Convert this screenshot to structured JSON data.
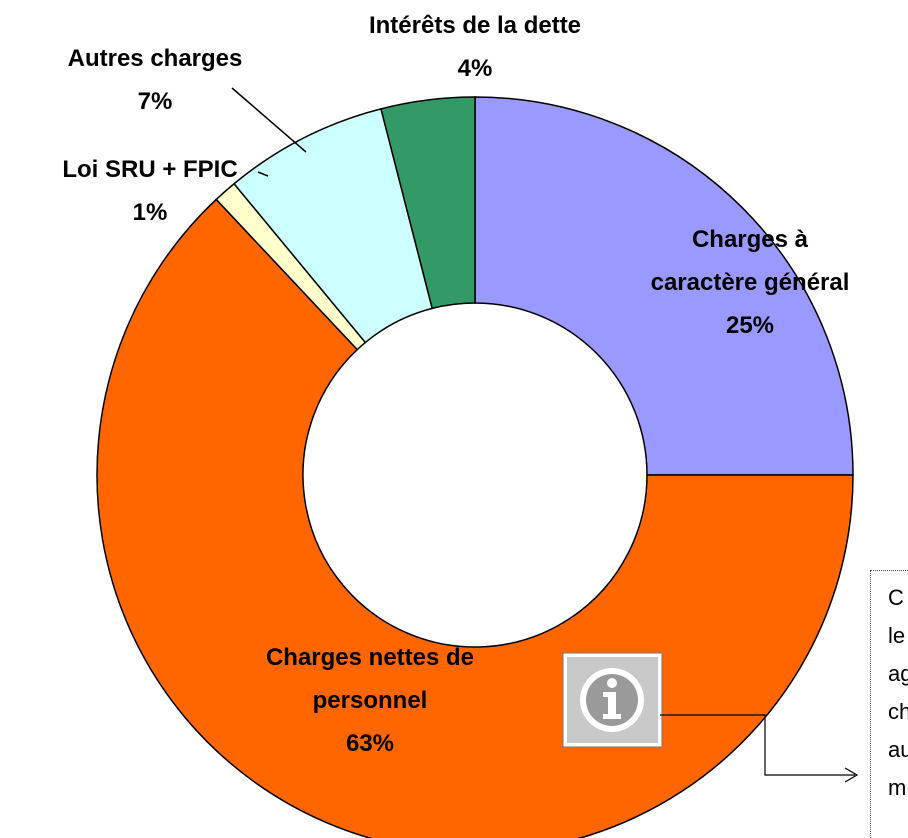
{
  "chart_data": {
    "type": "donut",
    "categories": [
      "Charges à\ncaractère général",
      "Charges nettes de\npersonnel",
      "Loi SRU + FPIC",
      "Autres charges",
      "Intérêts de la dette"
    ],
    "values": [
      25,
      63,
      1,
      7,
      4
    ],
    "value_labels": [
      "25%",
      "63%",
      "1%",
      "7%",
      "4%"
    ],
    "colors": [
      "#9999ff",
      "#ff6600",
      "#ffffcc",
      "#ccffff",
      "#339966"
    ],
    "annotation_lines": [
      "C",
      "le",
      "ag",
      "ch",
      "au",
      "m"
    ]
  }
}
